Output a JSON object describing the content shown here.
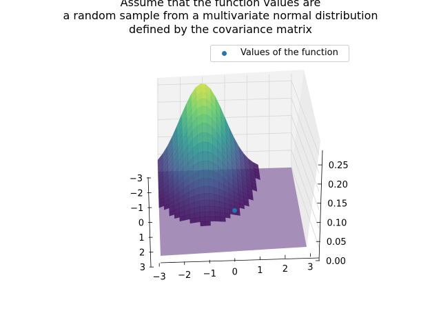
{
  "title_lines": [
    "Assume that the function values are",
    "a random sample from a multivariate normal distribution",
    "defined by the covariance matrix"
  ],
  "legend": {
    "label": "Values of the function"
  },
  "colors": {
    "point": "#1f77b4",
    "surface_low": "#440154",
    "surface_mid": "#21918c",
    "surface_high": "#fde725"
  },
  "chart_data": {
    "type": "surface",
    "title": "Assume that the function values are\na random sample from a multivariate normal distribution\ndefined by the covariance matrix",
    "surface": "bivariate normal density",
    "colormap": "viridis",
    "x_ticks": [
      "−3",
      "−2",
      "−1",
      "0",
      "1",
      "2",
      "3"
    ],
    "y_ticks": [
      "−3",
      "−2",
      "−1",
      "0",
      "1",
      "2",
      "3"
    ],
    "z_ticks": [
      "0.00",
      "0.05",
      "0.10",
      "0.15",
      "0.20",
      "0.25"
    ],
    "xlim": [
      -3,
      3
    ],
    "ylim": [
      -3,
      3
    ],
    "zlim": [
      0,
      0.27
    ],
    "peak": {
      "x": -1,
      "y": -3,
      "z": 0.25
    },
    "points": [
      {
        "x": 0,
        "y": 0,
        "z": 0,
        "label": "Values of the function"
      }
    ],
    "grid": true,
    "legend_position": "top-right"
  }
}
